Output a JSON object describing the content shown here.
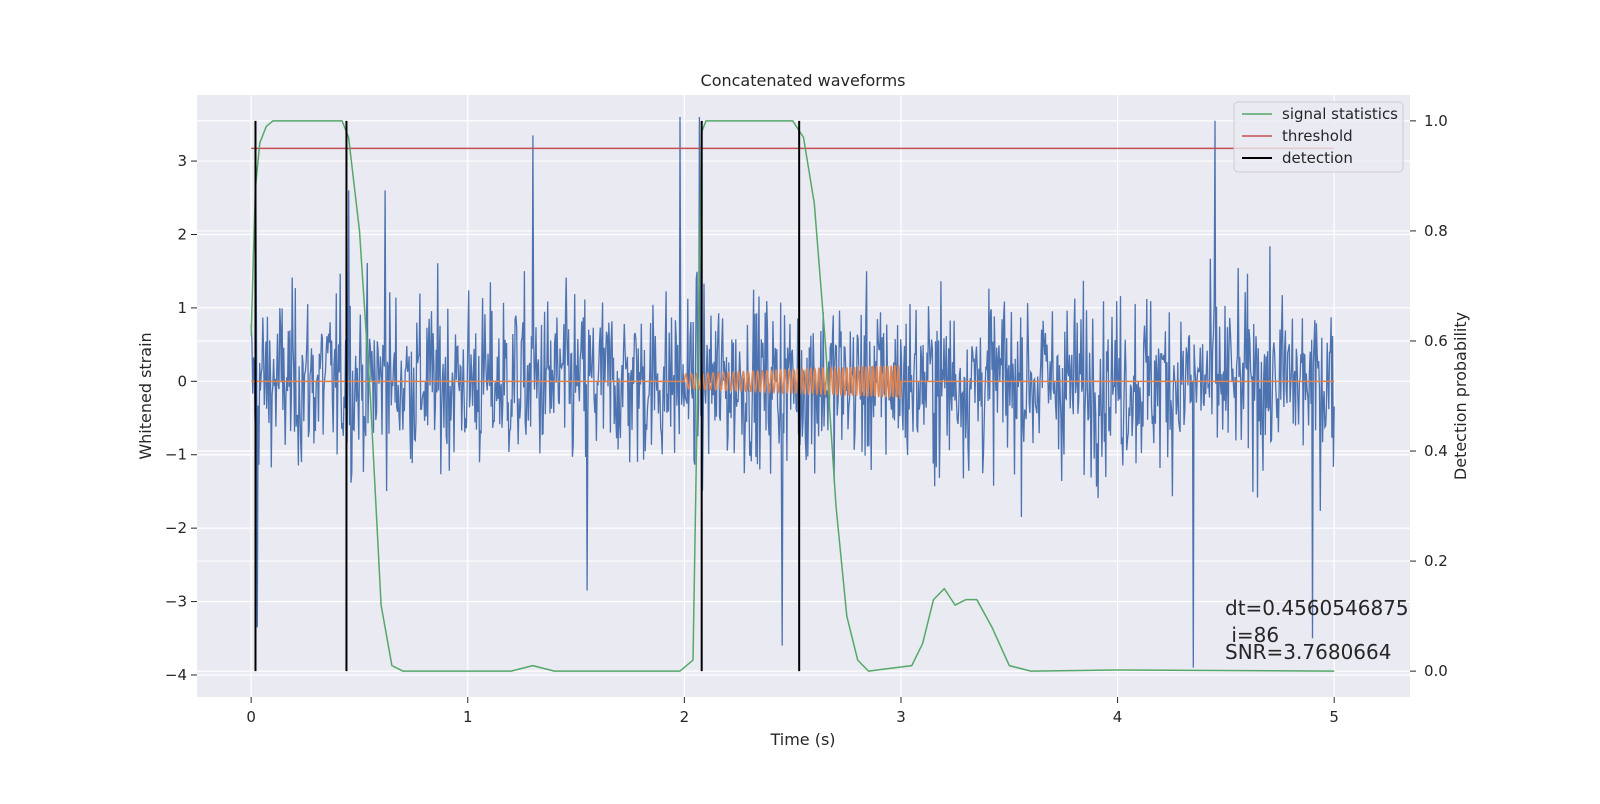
{
  "chart_data": {
    "type": "line",
    "title": "Concatenated waveforms",
    "xlabel": "Time (s)",
    "ylabel": "Whitened strain",
    "y2label": "Detection probability",
    "xlim": [
      -0.25,
      5.35
    ],
    "ylim": [
      -4.3,
      3.9
    ],
    "y2lim": [
      -0.047,
      1.047
    ],
    "grid": true,
    "legend_position": "top-right",
    "xticks": [
      0,
      1,
      2,
      3,
      4,
      5
    ],
    "yticks": [
      -4,
      -3,
      -2,
      -1,
      0,
      1,
      2,
      3
    ],
    "y2ticks": [
      0.0,
      0.2,
      0.4,
      0.6,
      0.8,
      1.0
    ],
    "xtick_labels": [
      "0",
      "1",
      "2",
      "3",
      "4",
      "5"
    ],
    "ytick_labels": [
      "−4",
      "−3",
      "−2",
      "−1",
      "0",
      "1",
      "2",
      "3"
    ],
    "y2tick_labels": [
      "0.0",
      "0.2",
      "0.4",
      "0.6",
      "0.8",
      "1.0"
    ],
    "colors": {
      "strain": "#4c72b0",
      "template": "#dd8452",
      "statistic": "#55a868",
      "threshold": "#c44e52",
      "detection": "#000000",
      "background": "#eaeaf2",
      "grid": "#ffffff"
    },
    "series": [
      {
        "name": "",
        "axis": "left",
        "kind": "noise",
        "t_range": [
          0,
          5
        ],
        "envelope_typical": 1.6,
        "peaks": [
          {
            "t": 0.02,
            "v": 2.5
          },
          {
            "t": 0.03,
            "v": -3.35
          },
          {
            "t": 0.45,
            "v": 2.6
          },
          {
            "t": 0.62,
            "v": 2.6
          },
          {
            "t": 1.3,
            "v": 3.35
          },
          {
            "t": 1.55,
            "v": -2.85
          },
          {
            "t": 1.98,
            "v": 3.6
          },
          {
            "t": 2.07,
            "v": 3.6
          },
          {
            "t": 2.45,
            "v": -3.6
          },
          {
            "t": 4.35,
            "v": -3.9
          },
          {
            "t": 4.45,
            "v": 3.55
          },
          {
            "t": 4.9,
            "v": -3.5
          }
        ]
      },
      {
        "name": "",
        "axis": "left",
        "kind": "chirp",
        "t_range": [
          0,
          5
        ],
        "chirp_range": [
          2.0,
          3.0
        ],
        "amp_start": 0.1,
        "amp_end": 0.22,
        "freq_start": 38,
        "freq_end": 62
      },
      {
        "name": "signal statistics",
        "axis": "right",
        "points": [
          [
            0.0,
            0.61
          ],
          [
            0.01,
            0.75
          ],
          [
            0.02,
            0.88
          ],
          [
            0.04,
            0.96
          ],
          [
            0.07,
            0.99
          ],
          [
            0.1,
            1.0
          ],
          [
            0.42,
            1.0
          ],
          [
            0.45,
            0.97
          ],
          [
            0.5,
            0.8
          ],
          [
            0.55,
            0.5
          ],
          [
            0.6,
            0.12
          ],
          [
            0.65,
            0.01
          ],
          [
            0.7,
            0.0
          ],
          [
            1.2,
            0.0
          ],
          [
            1.3,
            0.01
          ],
          [
            1.4,
            0.0
          ],
          [
            1.98,
            0.0
          ],
          [
            2.04,
            0.02
          ],
          [
            2.06,
            0.5
          ],
          [
            2.08,
            0.98
          ],
          [
            2.1,
            1.0
          ],
          [
            2.5,
            1.0
          ],
          [
            2.55,
            0.97
          ],
          [
            2.6,
            0.85
          ],
          [
            2.65,
            0.6
          ],
          [
            2.7,
            0.3
          ],
          [
            2.75,
            0.1
          ],
          [
            2.8,
            0.02
          ],
          [
            2.85,
            0.0
          ],
          [
            3.05,
            0.01
          ],
          [
            3.1,
            0.05
          ],
          [
            3.15,
            0.13
          ],
          [
            3.2,
            0.15
          ],
          [
            3.25,
            0.12
          ],
          [
            3.3,
            0.13
          ],
          [
            3.35,
            0.13
          ],
          [
            3.42,
            0.08
          ],
          [
            3.5,
            0.01
          ],
          [
            3.6,
            0.0
          ],
          [
            4.0,
            0.002
          ],
          [
            5.0,
            0.0
          ]
        ]
      },
      {
        "name": "threshold",
        "axis": "right",
        "points": [
          [
            0.0,
            0.95
          ],
          [
            5.0,
            0.95
          ]
        ]
      },
      {
        "name": "detection",
        "axis": "right",
        "vlines": [
          0.02,
          0.44,
          2.08,
          2.53
        ],
        "vline_range": [
          0.0,
          1.0
        ]
      }
    ],
    "annotations": [
      "dt=0.4560546875",
      " i=86",
      "SNR=3.7680664"
    ]
  }
}
